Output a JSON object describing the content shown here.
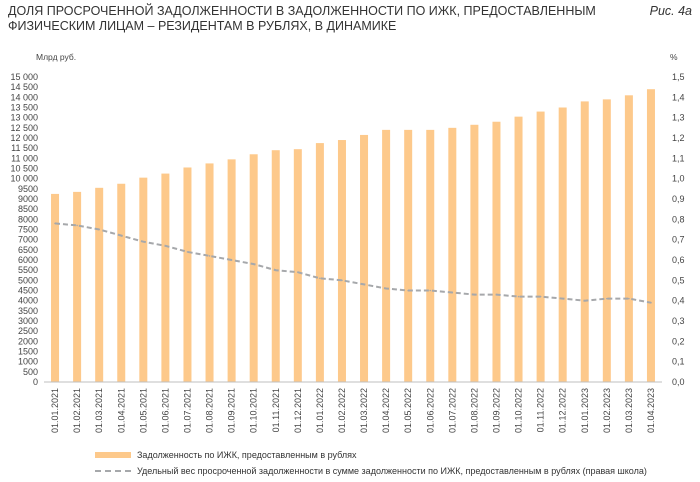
{
  "figure_label": "Рис. 4а",
  "chart_data": {
    "type": "bar",
    "title": "ДОЛЯ ПРОСРОЧЕННОЙ ЗАДОЛЖЕННОСТИ В ЗАДОЛЖЕННОСТИ ПО ИЖК, ПРЕДОСТАВЛЕННЫМ ФИЗИЧЕСКИМ ЛИЦАМ – РЕЗИДЕНТАМ В РУБЛЯХ, В ДИНАМИКЕ",
    "ylabel_left": "Млрд руб.",
    "ylabel_right": "%",
    "ylim_left": [
      0,
      15000
    ],
    "ylim_right": [
      0,
      1.5
    ],
    "yticks_left": [
      "0",
      "500",
      "1000",
      "1500",
      "2000",
      "2500",
      "3000",
      "3500",
      "4000",
      "4500",
      "5000",
      "5500",
      "6000",
      "6500",
      "7000",
      "7500",
      "8000",
      "8500",
      "9000",
      "9500",
      "10 000",
      "10 500",
      "11 000",
      "11 500",
      "12 000",
      "12 500",
      "13 000",
      "13 500",
      "14 000",
      "14 500",
      "15 000"
    ],
    "yticks_right": [
      "0,0",
      "0,1",
      "0,2",
      "0,3",
      "0,4",
      "0,5",
      "0,6",
      "0,7",
      "0,8",
      "0,9",
      "1,0",
      "1,1",
      "1,2",
      "1,3",
      "1,4",
      "1,5"
    ],
    "categories": [
      "01.01.2021",
      "01.02.2021",
      "01.03.2021",
      "01.04.2021",
      "01.05.2021",
      "01.06.2021",
      "01.07.2021",
      "01.08.2021",
      "01.09.2021",
      "01.10.2021",
      "01.11.2021",
      "01.12.2021",
      "01.01.2022",
      "01.02.2022",
      "01.03.2022",
      "01.04.2022",
      "01.05.2022",
      "01.06.2022",
      "01.07.2022",
      "01.08.2022",
      "01.09.2022",
      "01.10.2022",
      "01.11.2022",
      "01.12.2022",
      "01.01.2023",
      "01.02.2023",
      "01.03.2023",
      "01.04.2023"
    ],
    "series": [
      {
        "name": "Задолженность по ИЖК, предоставленным в рублях",
        "type": "bar",
        "axis": "left",
        "color": "#fdc98b",
        "values": [
          9250,
          9350,
          9550,
          9750,
          10050,
          10250,
          10550,
          10750,
          10950,
          11200,
          11400,
          11450,
          11750,
          11900,
          12150,
          12400,
          12400,
          12400,
          12500,
          12650,
          12800,
          13050,
          13300,
          13500,
          13800,
          13900,
          14100,
          14400
        ]
      },
      {
        "name": "Удельный вес просроченной задолженности в сумме задолженности по ИЖК, предоставленным в рублях (правая школа)",
        "type": "line",
        "axis": "right",
        "color": "#a6a8ab",
        "values": [
          0.78,
          0.77,
          0.75,
          0.72,
          0.69,
          0.67,
          0.64,
          0.62,
          0.6,
          0.58,
          0.55,
          0.54,
          0.51,
          0.5,
          0.48,
          0.46,
          0.45,
          0.45,
          0.44,
          0.43,
          0.43,
          0.42,
          0.42,
          0.41,
          0.4,
          0.41,
          0.41,
          0.39
        ]
      }
    ]
  }
}
